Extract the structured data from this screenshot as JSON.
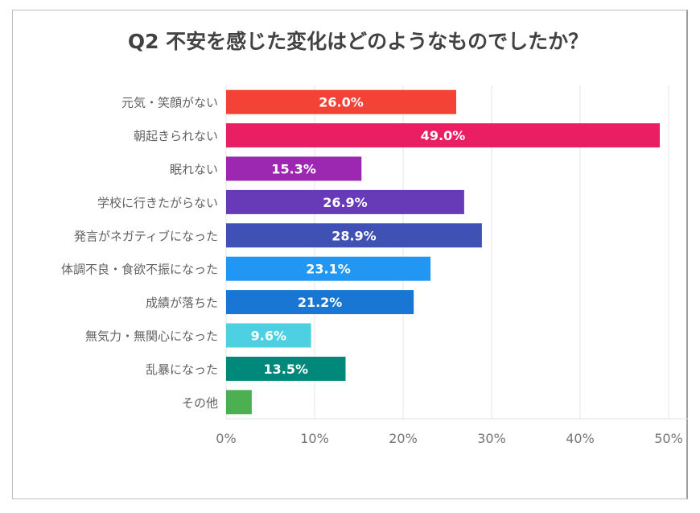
{
  "chart_data": {
    "type": "bar",
    "orientation": "horizontal",
    "title": "Q2 不安を感じた変化はどのようなものでしたか？",
    "categories": [
      "元気・笑顔がない",
      "朝起きられない",
      "眠れない",
      "学校に行きたがらない",
      "発言がネガティブになった",
      "体調不良・食欲不振になった",
      "成績が落ちた",
      "無気力・無関心になった",
      "乱暴になった",
      "その他"
    ],
    "values": [
      26.0,
      49.0,
      15.3,
      26.9,
      28.9,
      23.1,
      21.2,
      9.6,
      13.5,
      2.9
    ],
    "data_labels": [
      "26.0%",
      "49.0%",
      "15.3%",
      "26.9%",
      "28.9%",
      "23.1%",
      "21.2%",
      "9.6%",
      "13.5%",
      ""
    ],
    "colors": [
      "#f44336",
      "#e91e63",
      "#9c27b0",
      "#673ab7",
      "#3f51b5",
      "#2196f3",
      "#1976d2",
      "#4dd0e1",
      "#00897b",
      "#4caf50"
    ],
    "xlim": [
      0,
      50
    ],
    "x_ticks": [
      "0%",
      "10%",
      "20%",
      "30%",
      "40%",
      "50%"
    ],
    "grid": true,
    "xlabel": "",
    "ylabel": ""
  }
}
